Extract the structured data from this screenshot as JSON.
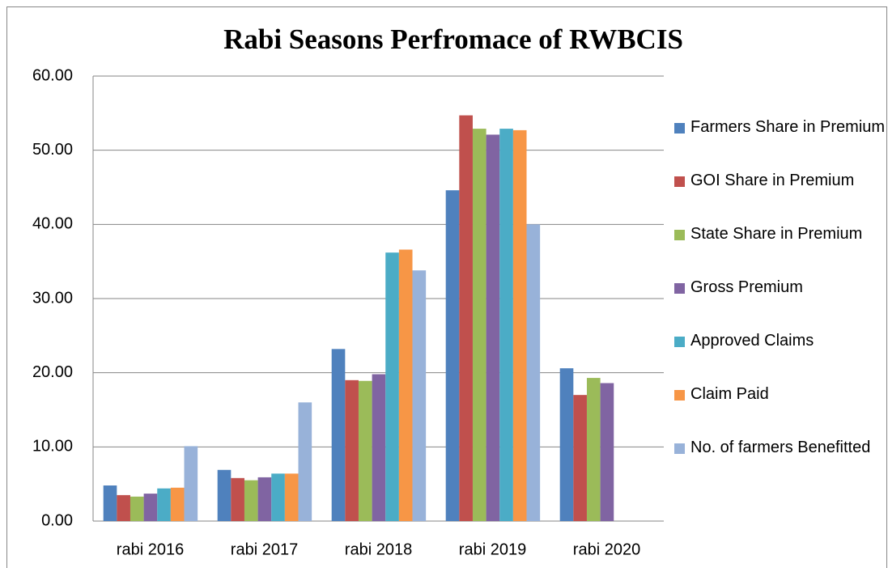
{
  "chart_data": {
    "type": "bar",
    "title": "Rabi Seasons Perfromace of RWBCIS",
    "categories": [
      "rabi 2016",
      "rabi 2017",
      "rabi 2018",
      "rabi 2019",
      "rabi 2020"
    ],
    "series": [
      {
        "name": "Farmers Share in Premium",
        "color": "#4f81bd",
        "values": [
          4.8,
          6.9,
          23.2,
          44.6,
          20.6
        ]
      },
      {
        "name": "GOI Share in Premium",
        "color": "#c0504d",
        "values": [
          3.5,
          5.8,
          19.0,
          54.7,
          17.0
        ]
      },
      {
        "name": "State Share in Premium",
        "color": "#9bbb59",
        "values": [
          3.3,
          5.5,
          18.9,
          52.9,
          19.3
        ]
      },
      {
        "name": "Gross Premium",
        "color": "#8064a2",
        "values": [
          3.7,
          5.9,
          19.8,
          52.1,
          18.6
        ]
      },
      {
        "name": "Approved Claims",
        "color": "#4bacc6",
        "values": [
          4.4,
          6.4,
          36.2,
          52.9,
          null
        ]
      },
      {
        "name": "Claim Paid",
        "color": "#f79646",
        "values": [
          4.5,
          6.4,
          36.6,
          52.7,
          null
        ]
      },
      {
        "name": "No. of farmers Benefitted",
        "color": "#98b2d9",
        "values": [
          10.1,
          16.0,
          33.8,
          40.0,
          null
        ]
      }
    ],
    "ylim": [
      0,
      60
    ],
    "yticks": [
      {
        "value": 0,
        "label": "0.00"
      },
      {
        "value": 10,
        "label": "10.00"
      },
      {
        "value": 20,
        "label": "20.00"
      },
      {
        "value": 30,
        "label": "30.00"
      },
      {
        "value": 40,
        "label": "40.00"
      },
      {
        "value": 50,
        "label": "50.00"
      },
      {
        "value": 60,
        "label": "60.00"
      }
    ],
    "grid": true,
    "legend": "right"
  }
}
